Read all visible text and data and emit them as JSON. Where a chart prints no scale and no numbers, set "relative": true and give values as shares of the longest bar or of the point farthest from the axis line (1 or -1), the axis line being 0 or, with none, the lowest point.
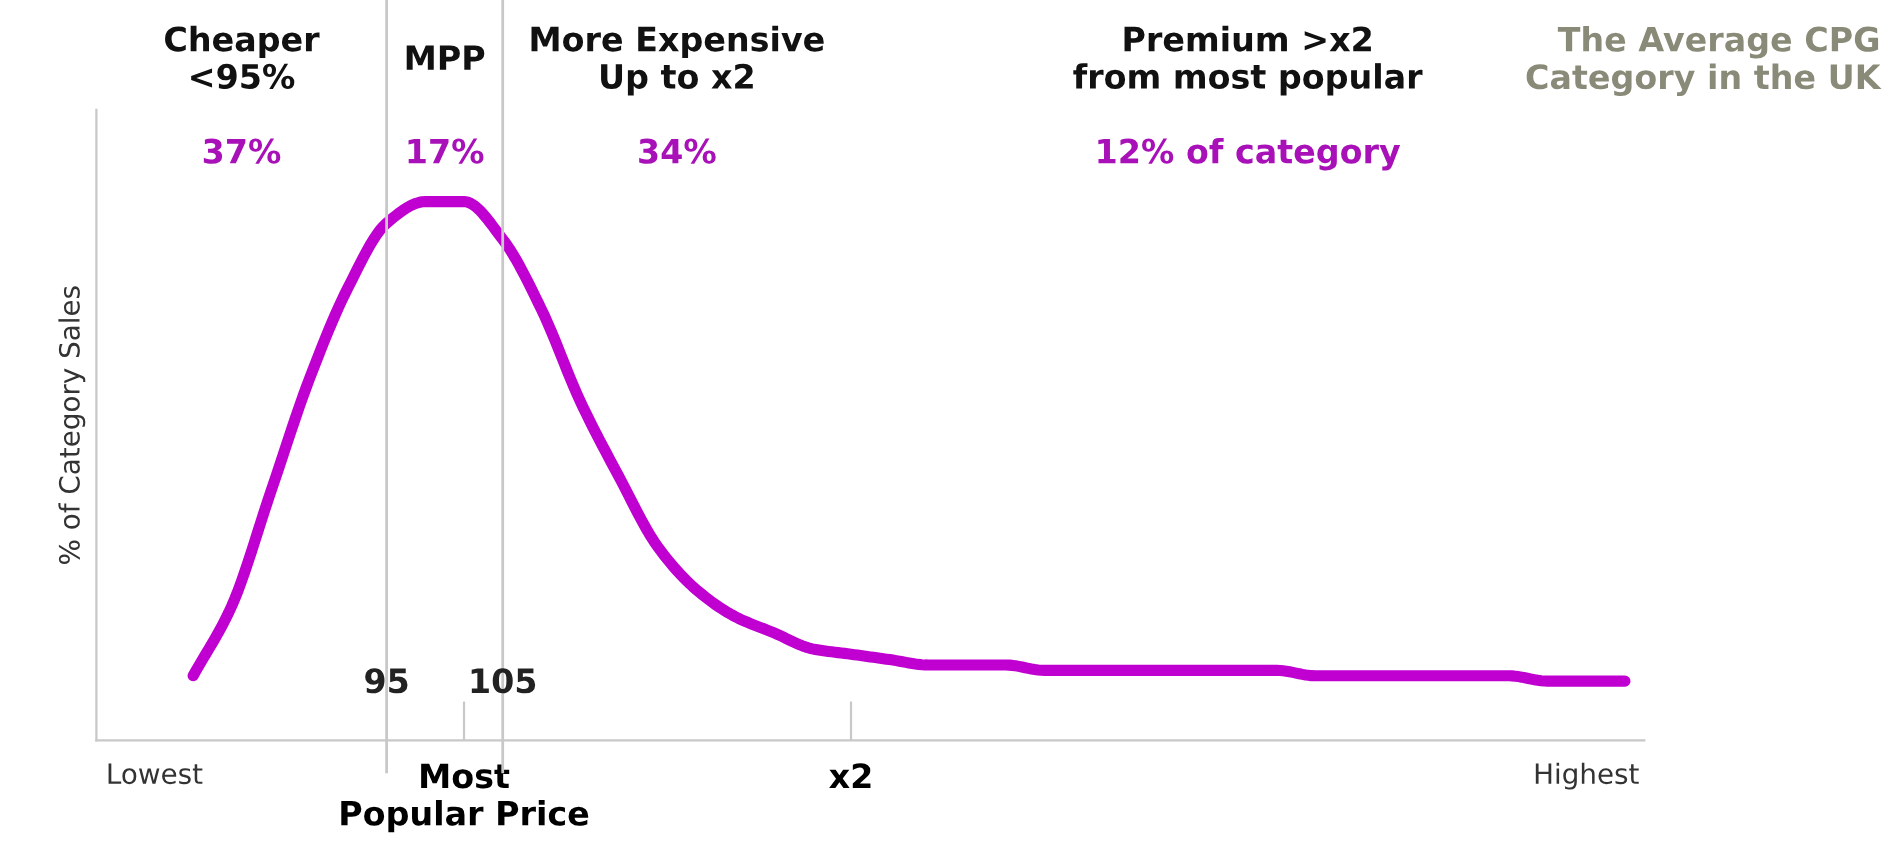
{
  "chart_data": {
    "type": "line",
    "relative": true,
    "title": "The Average CPG\nCategory in the UK",
    "ylabel": "% of Category Sales",
    "categories": [
      null,
      "Lowest",
      null,
      null,
      null,
      null,
      null,
      "95",
      null,
      "Most\nPopular Price",
      "105",
      null,
      null,
      null,
      null,
      null,
      null,
      null,
      null,
      "x2",
      null,
      null,
      null,
      null,
      null,
      null,
      null,
      null,
      null,
      null,
      null,
      null,
      null,
      null,
      null,
      null,
      null,
      null,
      "Highest",
      null
    ],
    "ref_lines": [
      {
        "axis": "x",
        "value": "95",
        "color": "#c8c8c8"
      },
      {
        "axis": "x",
        "value": "105",
        "color": "#c8c8c8"
      }
    ],
    "annotations": [
      "Cheaper\n<95%",
      "37%",
      "MPP",
      "17%",
      "More Expensive\nUp to x2",
      "34%",
      "Premium >x2\nfrom most popular",
      "12% of category"
    ],
    "series": [
      {
        "color": "#c000d0",
        "values": [
          null,
          null,
          0.12,
          0.25,
          0.46,
          0.67,
          0.84,
          0.96,
          1.0,
          1.0,
          0.93,
          0.8,
          0.63,
          0.49,
          0.36,
          0.28,
          0.23,
          0.2,
          0.17,
          0.16,
          0.15,
          0.14,
          0.14,
          0.14,
          0.13,
          0.13,
          0.13,
          0.13,
          0.13,
          0.13,
          0.13,
          0.12,
          0.12,
          0.12,
          0.12,
          0.12,
          0.12,
          0.11,
          0.11,
          0.11
        ]
      }
    ]
  }
}
